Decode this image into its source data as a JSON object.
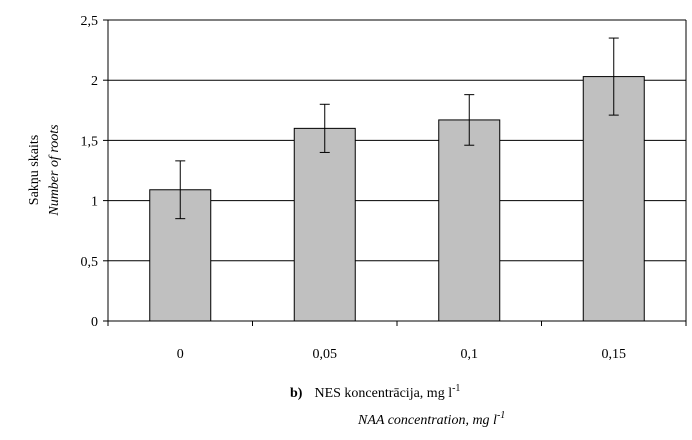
{
  "chart_data": {
    "type": "bar",
    "categories": [
      "0",
      "0,05",
      "0,1",
      "0,15"
    ],
    "values": [
      1.09,
      1.6,
      1.67,
      2.03
    ],
    "error": [
      0.24,
      0.2,
      0.21,
      0.32
    ],
    "ylim": [
      0,
      2.5
    ],
    "y_ticks": [
      "0",
      "0,5",
      "1",
      "1,5",
      "2",
      "2,5"
    ],
    "y_tick_values": [
      0,
      0.5,
      1,
      1.5,
      2,
      2.5
    ],
    "grid": true,
    "bar_color": "#c0c0c0",
    "ylabel": "Sakņu skaits",
    "ylabel_en": "Number of roots",
    "xlabel_panel": "b)",
    "xlabel_main": "NES koncentrācija, mg l",
    "xlabel_en": "NAA concentration, mg l",
    "unit_exponent": "-1"
  }
}
